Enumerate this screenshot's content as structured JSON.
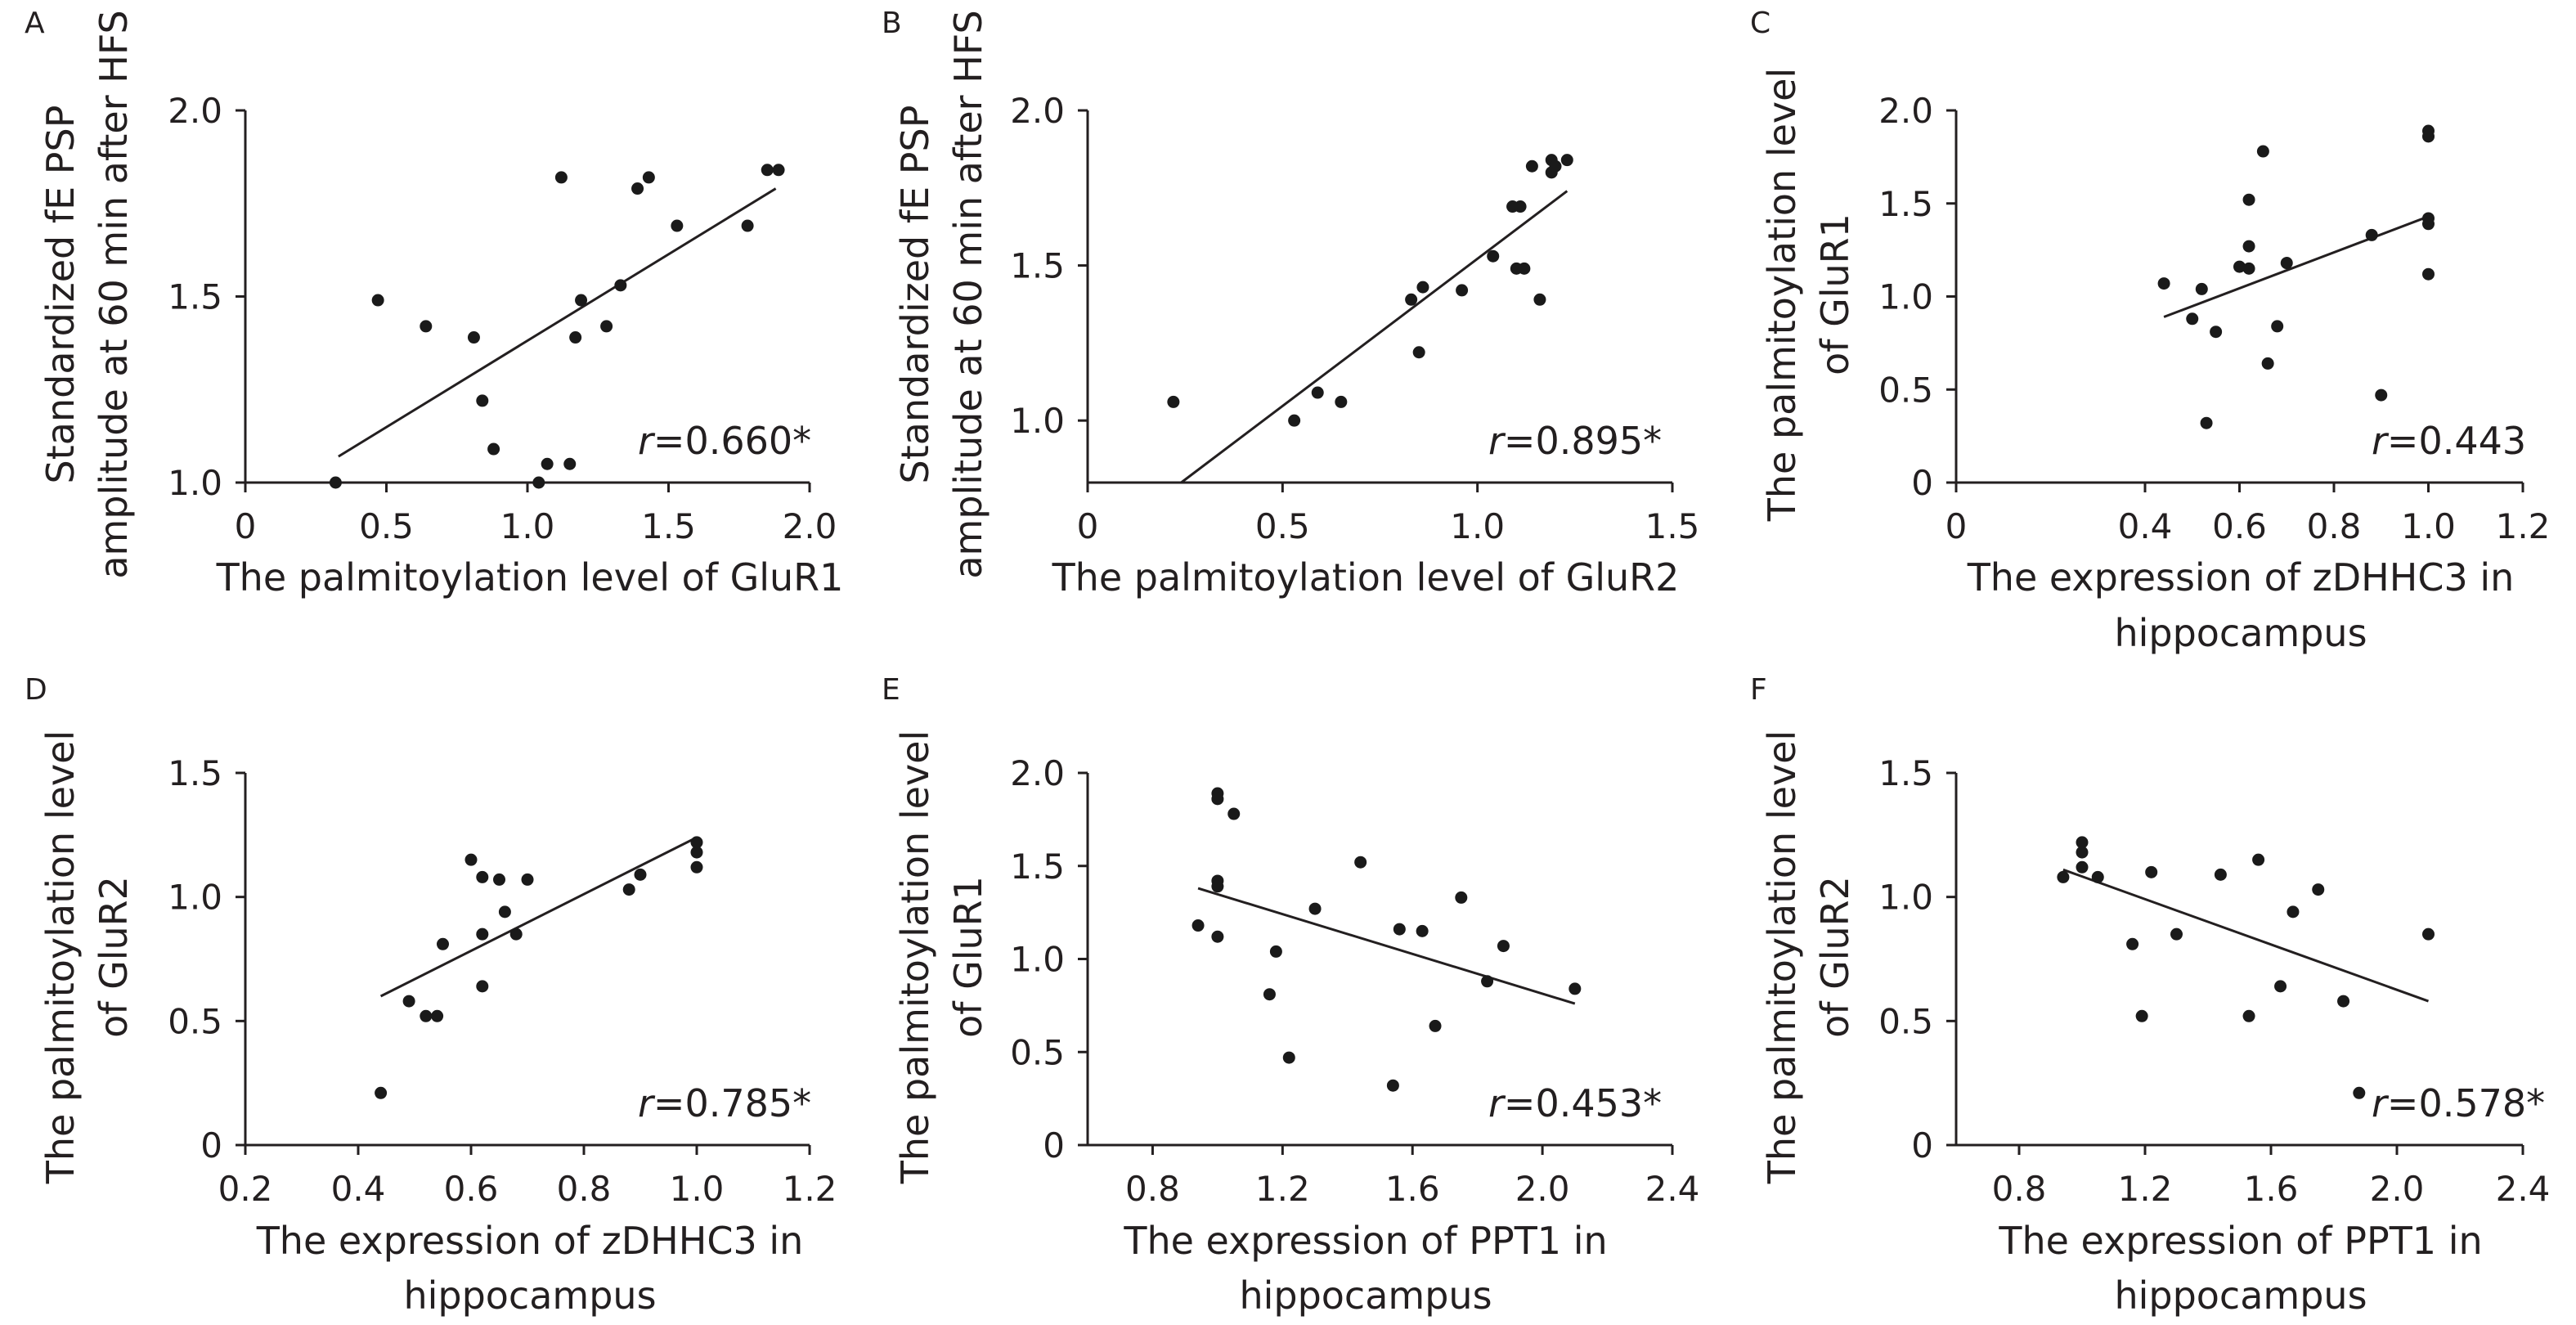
{
  "chart_data": [
    {
      "type": "scatter",
      "panel": "A",
      "xlabel": "The palmitoylation level of GluR1",
      "ylabel": "Standardized fE PSP amplitude at 60 min after HFS",
      "xlim": [
        0,
        2.0
      ],
      "ylim": [
        1.0,
        2.0
      ],
      "x_ticks": [
        "0",
        "0.5",
        "1.0",
        "1.5",
        "2.0"
      ],
      "y_ticks": [
        "1.0",
        "1.5",
        "2.0"
      ],
      "correlation_symbol": "r",
      "correlation_value": "=0.660*",
      "points": [
        [
          0.32,
          1.0
        ],
        [
          0.47,
          1.49
        ],
        [
          0.64,
          1.42
        ],
        [
          0.81,
          1.39
        ],
        [
          0.84,
          1.22
        ],
        [
          0.88,
          1.09
        ],
        [
          1.04,
          1.0
        ],
        [
          1.07,
          1.05
        ],
        [
          1.12,
          1.82
        ],
        [
          1.15,
          1.05
        ],
        [
          1.17,
          1.39
        ],
        [
          1.19,
          1.49
        ],
        [
          1.28,
          1.42
        ],
        [
          1.33,
          1.53
        ],
        [
          1.39,
          1.79
        ],
        [
          1.43,
          1.82
        ],
        [
          1.53,
          1.69
        ],
        [
          1.78,
          1.69
        ],
        [
          1.85,
          1.84
        ],
        [
          1.89,
          1.84
        ]
      ],
      "fit": [
        [
          0.33,
          1.07
        ],
        [
          1.88,
          1.79
        ]
      ]
    },
    {
      "type": "scatter",
      "panel": "B",
      "xlabel": "The palmitoylation level of GluR2",
      "ylabel": "Standardized fE PSP amplitude at 60 min after HFS",
      "xlim": [
        0,
        1.5
      ],
      "ylim": [
        0.8,
        2.0
      ],
      "x_ticks": [
        "0",
        "0.5",
        "1.0",
        "1.5"
      ],
      "y_ticks": [
        "1.0",
        "1.5",
        "2.0"
      ],
      "correlation_symbol": "r",
      "correlation_value": "=0.895*",
      "points": [
        [
          0.22,
          1.06
        ],
        [
          0.53,
          1.0
        ],
        [
          0.59,
          1.09
        ],
        [
          0.65,
          1.06
        ],
        [
          0.83,
          1.39
        ],
        [
          0.85,
          1.22
        ],
        [
          0.86,
          1.43
        ],
        [
          0.96,
          1.42
        ],
        [
          1.04,
          1.53
        ],
        [
          1.09,
          1.69
        ],
        [
          1.1,
          1.49
        ],
        [
          1.11,
          1.69
        ],
        [
          1.12,
          1.49
        ],
        [
          1.14,
          1.82
        ],
        [
          1.16,
          1.39
        ],
        [
          1.19,
          1.84
        ],
        [
          1.19,
          1.8
        ],
        [
          1.2,
          1.82
        ],
        [
          1.23,
          1.84
        ]
      ],
      "fit": [
        [
          0.24,
          0.8
        ],
        [
          1.23,
          1.74
        ]
      ]
    },
    {
      "type": "scatter",
      "panel": "C",
      "xlabel": "The expression of zDHHC3 in hippocampus",
      "ylabel": "The palmitoylation level of GluR1",
      "xlim": [
        0,
        1.2
      ],
      "ylim": [
        0,
        2.0
      ],
      "x_ticks": [
        "0",
        "0.4",
        "0.6",
        "0.8",
        "1.0",
        "1.2"
      ],
      "y_ticks": [
        "0",
        "0.5",
        "1.0",
        "1.5",
        "2.0"
      ],
      "correlation_symbol": "r",
      "correlation_value": "=0.443",
      "points": [
        [
          0.44,
          1.07
        ],
        [
          0.5,
          0.88
        ],
        [
          0.52,
          1.04
        ],
        [
          0.53,
          0.32
        ],
        [
          0.55,
          0.81
        ],
        [
          0.6,
          1.16
        ],
        [
          0.62,
          1.52
        ],
        [
          0.62,
          1.27
        ],
        [
          0.62,
          1.15
        ],
        [
          0.65,
          1.78
        ],
        [
          0.66,
          0.64
        ],
        [
          0.68,
          0.84
        ],
        [
          0.7,
          1.18
        ],
        [
          0.88,
          1.33
        ],
        [
          0.9,
          0.47
        ],
        [
          1.0,
          1.89
        ],
        [
          1.0,
          1.86
        ],
        [
          1.0,
          1.42
        ],
        [
          1.0,
          1.39
        ],
        [
          1.0,
          1.12
        ]
      ],
      "fit": [
        [
          0.44,
          0.89
        ],
        [
          1.0,
          1.43
        ]
      ]
    },
    {
      "type": "scatter",
      "panel": "D",
      "xlabel": "The expression of zDHHC3 in hippocampus",
      "ylabel": "The palmitoylation level of GluR2",
      "xlim": [
        0.2,
        1.2
      ],
      "ylim": [
        0,
        1.5
      ],
      "x_ticks": [
        "0.2",
        "0.4",
        "0.6",
        "0.8",
        "1.0",
        "1.2"
      ],
      "y_ticks": [
        "0",
        "0.5",
        "1.0",
        "1.5"
      ],
      "correlation_symbol": "r",
      "correlation_value": "=0.785*",
      "points": [
        [
          0.44,
          0.21
        ],
        [
          0.49,
          0.58
        ],
        [
          0.52,
          0.52
        ],
        [
          0.54,
          0.52
        ],
        [
          0.55,
          0.81
        ],
        [
          0.6,
          1.15
        ],
        [
          0.62,
          1.08
        ],
        [
          0.62,
          0.85
        ],
        [
          0.62,
          0.64
        ],
        [
          0.65,
          1.07
        ],
        [
          0.66,
          0.94
        ],
        [
          0.68,
          0.85
        ],
        [
          0.7,
          1.07
        ],
        [
          0.88,
          1.03
        ],
        [
          0.9,
          1.09
        ],
        [
          1.0,
          1.22
        ],
        [
          1.0,
          1.18
        ],
        [
          1.0,
          1.12
        ]
      ],
      "fit": [
        [
          0.44,
          0.6
        ],
        [
          1.0,
          1.24
        ]
      ]
    },
    {
      "type": "scatter",
      "panel": "E",
      "xlabel": "The expression of PPT1 in hippocampus",
      "ylabel": "The palmitoylation level of GluR1",
      "xlim": [
        0.6,
        2.4
      ],
      "ylim": [
        0,
        2.0
      ],
      "x_ticks": [
        "0.8",
        "1.2",
        "1.6",
        "2.0",
        "2.4"
      ],
      "y_ticks": [
        "0",
        "0.5",
        "1.0",
        "1.5",
        "2.0"
      ],
      "correlation_symbol": "r",
      "correlation_value": "=0.453*",
      "points": [
        [
          0.94,
          1.18
        ],
        [
          1.0,
          1.89
        ],
        [
          1.0,
          1.86
        ],
        [
          1.0,
          1.42
        ],
        [
          1.0,
          1.39
        ],
        [
          1.0,
          1.12
        ],
        [
          1.05,
          1.78
        ],
        [
          1.16,
          0.81
        ],
        [
          1.18,
          1.04
        ],
        [
          1.22,
          0.47
        ],
        [
          1.3,
          1.27
        ],
        [
          1.44,
          1.52
        ],
        [
          1.54,
          0.32
        ],
        [
          1.56,
          1.16
        ],
        [
          1.63,
          1.15
        ],
        [
          1.67,
          0.64
        ],
        [
          1.75,
          1.33
        ],
        [
          1.83,
          0.88
        ],
        [
          1.88,
          1.07
        ],
        [
          2.1,
          0.84
        ]
      ],
      "fit": [
        [
          0.94,
          1.38
        ],
        [
          2.1,
          0.76
        ]
      ]
    },
    {
      "type": "scatter",
      "panel": "F",
      "xlabel": "The expression of PPT1 in hippocampus",
      "ylabel": "The palmitoylation level of GluR2",
      "xlim": [
        0.6,
        2.4
      ],
      "ylim": [
        0,
        1.5
      ],
      "x_ticks": [
        "0.8",
        "1.2",
        "1.6",
        "2.0",
        "2.4"
      ],
      "y_ticks": [
        "0",
        "0.5",
        "1.0",
        "1.5"
      ],
      "correlation_symbol": "r",
      "correlation_value": "=0.578*",
      "points": [
        [
          0.94,
          1.08
        ],
        [
          1.0,
          1.22
        ],
        [
          1.0,
          1.18
        ],
        [
          1.0,
          1.12
        ],
        [
          1.05,
          1.08
        ],
        [
          1.16,
          0.81
        ],
        [
          1.19,
          0.52
        ],
        [
          1.22,
          1.1
        ],
        [
          1.3,
          0.85
        ],
        [
          1.44,
          1.09
        ],
        [
          1.53,
          0.52
        ],
        [
          1.56,
          1.15
        ],
        [
          1.63,
          0.64
        ],
        [
          1.67,
          0.94
        ],
        [
          1.75,
          1.03
        ],
        [
          1.83,
          0.58
        ],
        [
          1.88,
          0.21
        ],
        [
          2.1,
          0.85
        ]
      ],
      "fit": [
        [
          0.94,
          1.11
        ],
        [
          2.1,
          0.58
        ]
      ]
    }
  ]
}
